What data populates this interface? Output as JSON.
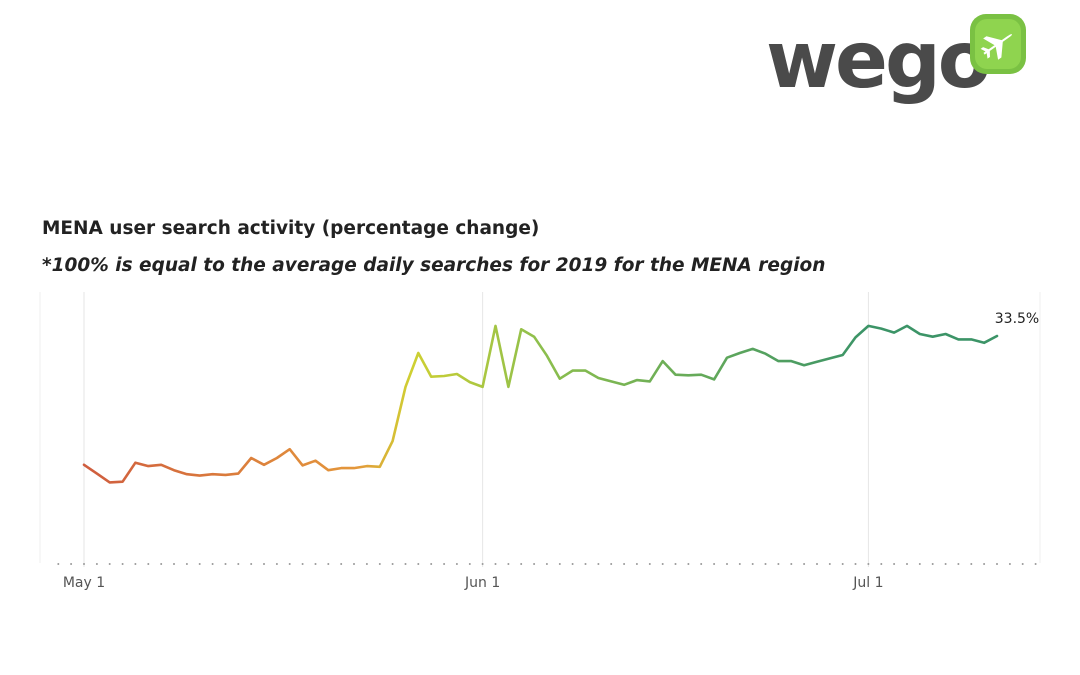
{
  "brand": {
    "name": "wego",
    "badge_icon": "airplane-icon",
    "colors": {
      "text": "#4a4a4a",
      "badge": "#7ac143"
    }
  },
  "chart_data": {
    "type": "line",
    "title": "MENA user search activity (percentage change)",
    "subtitle": "*100% is equal to the average daily searches for 2019 for the MENA region",
    "xlabel": "",
    "ylabel": "",
    "x_tick_labels": [
      "May 1",
      "Jun 1",
      "Jul 1"
    ],
    "x_ticks": [
      "2020-05-01",
      "2020-06-01",
      "2020-07-01"
    ],
    "end_label": "33.5%",
    "grid": "vertical",
    "ylim": [
      0,
      40
    ],
    "color_gradient": [
      "#cf5c3e",
      "#e4973b",
      "#cfd032",
      "#8dbf4d",
      "#3c9467"
    ],
    "series": [
      {
        "x": [
          "2020-05-01",
          "2020-05-02",
          "2020-05-03",
          "2020-05-04",
          "2020-05-05",
          "2020-05-06",
          "2020-05-07",
          "2020-05-08",
          "2020-05-09",
          "2020-05-10",
          "2020-05-11",
          "2020-05-12",
          "2020-05-13",
          "2020-05-14",
          "2020-05-15",
          "2020-05-16",
          "2020-05-17",
          "2020-05-18",
          "2020-05-19",
          "2020-05-20",
          "2020-05-21",
          "2020-05-22",
          "2020-05-23",
          "2020-05-24",
          "2020-05-25",
          "2020-05-26",
          "2020-05-27",
          "2020-05-28",
          "2020-05-29",
          "2020-05-30",
          "2020-05-31",
          "2020-06-01",
          "2020-06-02",
          "2020-06-03",
          "2020-06-04",
          "2020-06-05",
          "2020-06-06",
          "2020-06-07",
          "2020-06-08",
          "2020-06-09",
          "2020-06-10",
          "2020-06-11",
          "2020-06-12",
          "2020-06-13",
          "2020-06-14",
          "2020-06-15",
          "2020-06-16",
          "2020-06-17",
          "2020-06-18",
          "2020-06-19",
          "2020-06-20",
          "2020-06-21",
          "2020-06-22",
          "2020-06-23",
          "2020-06-24",
          "2020-06-25",
          "2020-06-26",
          "2020-06-27",
          "2020-06-28",
          "2020-06-29",
          "2020-06-30",
          "2020-07-01",
          "2020-07-02",
          "2020-07-03",
          "2020-07-04",
          "2020-07-05",
          "2020-07-06",
          "2020-07-07",
          "2020-07-08",
          "2020-07-09",
          "2020-07-10",
          "2020-07-11"
        ],
        "values": [
          14.5,
          13.2,
          11.9,
          12.0,
          14.8,
          14.3,
          14.5,
          13.7,
          13.1,
          12.9,
          13.1,
          13.0,
          13.2,
          15.5,
          14.5,
          15.5,
          16.8,
          14.4,
          15.1,
          13.7,
          14.0,
          14.0,
          14.3,
          14.2,
          18.0,
          26.0,
          31.0,
          27.5,
          27.6,
          27.9,
          26.7,
          26.0,
          35.0,
          26.0,
          34.5,
          33.4,
          30.6,
          27.2,
          28.4,
          28.4,
          27.3,
          26.8,
          26.3,
          27.0,
          26.8,
          29.8,
          27.8,
          27.7,
          27.8,
          27.1,
          30.3,
          31.0,
          31.6,
          30.9,
          29.8,
          29.8,
          29.2,
          29.7,
          30.2,
          30.7,
          33.3,
          35.0,
          34.6,
          34.0,
          35.0,
          33.8,
          33.4,
          33.8,
          33.0,
          33.0,
          32.5,
          33.5
        ]
      }
    ]
  }
}
